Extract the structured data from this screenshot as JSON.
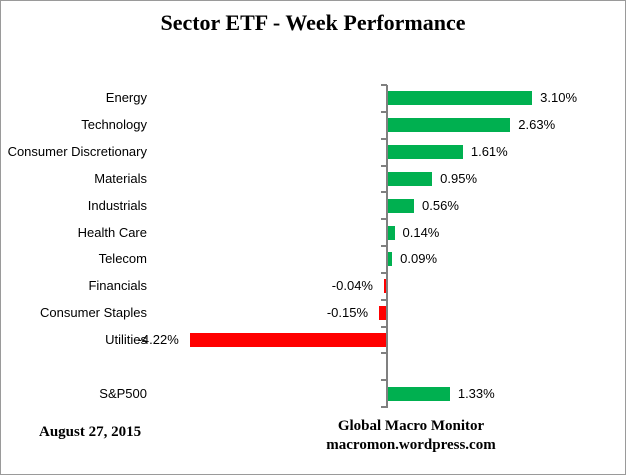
{
  "chart_data": {
    "type": "bar",
    "orientation": "horizontal",
    "title": "Sector ETF - Week Performance",
    "categories": [
      "Energy",
      "Technology",
      "Consumer Discretionary",
      "Materials",
      "Industrials",
      "Health Care",
      "Telecom",
      "Financials",
      "Consumer Staples",
      "Utilities",
      "",
      "S&P500"
    ],
    "values": [
      3.1,
      2.63,
      1.61,
      0.95,
      0.56,
      0.14,
      0.09,
      -0.04,
      -0.15,
      -4.22,
      null,
      1.33
    ],
    "value_labels": [
      "3.10%",
      "2.63%",
      "1.61%",
      "0.95%",
      "0.56%",
      "0.14%",
      "0.09%",
      "-0.04%",
      "-0.15%",
      "-4.22%",
      "",
      "1.33%"
    ],
    "xlabel": "",
    "ylabel": "",
    "xlim": [
      -5.1,
      5.1
    ],
    "grid": false,
    "legend": false,
    "value_axis_labels_visible": false,
    "positive_color": "#00B050",
    "negative_color": "#FF0000",
    "axis_color": "#808080"
  },
  "footer": {
    "date": "August 27, 2015",
    "source_line1": "Global Macro Monitor",
    "source_line2": "macromon.wordpress.com"
  }
}
